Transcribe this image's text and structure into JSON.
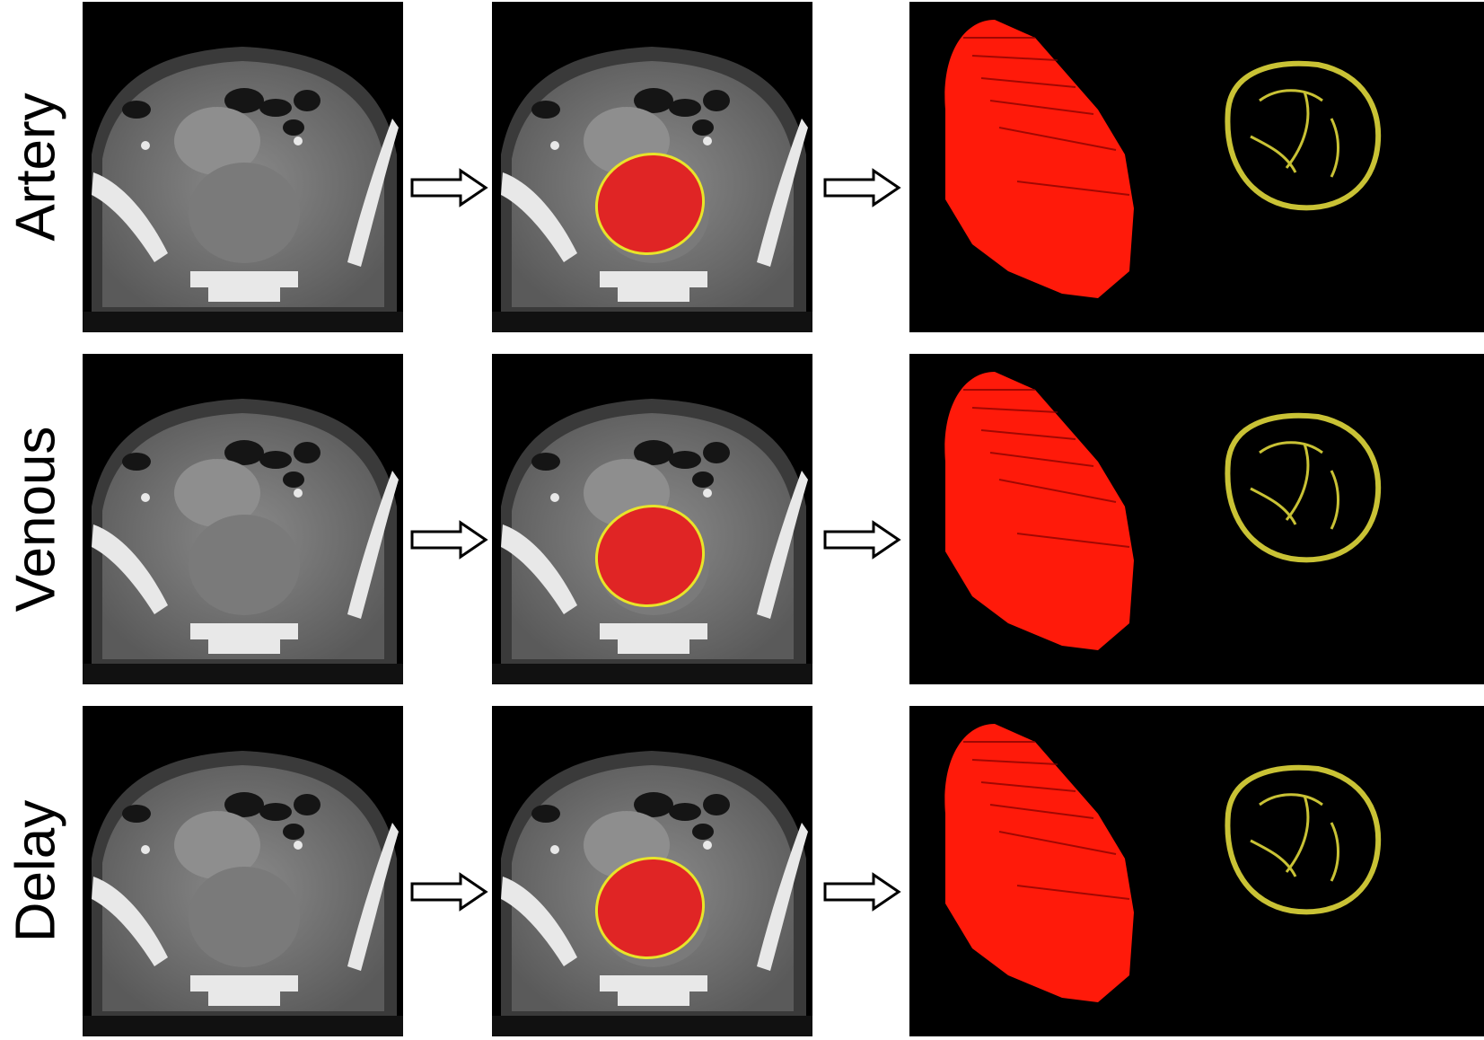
{
  "figure": {
    "rows": [
      {
        "phase": "Artery"
      },
      {
        "phase": "Venous"
      },
      {
        "phase": "Delay"
      }
    ]
  },
  "colors": {
    "tumor_mask": "#e02525",
    "contour": "#e8e42a",
    "surface_render": "#ff1a0a",
    "shell_render": "#c9c235"
  }
}
